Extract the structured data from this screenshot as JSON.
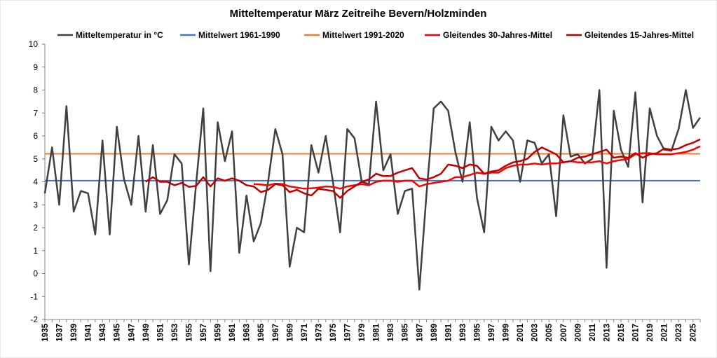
{
  "chart_data": {
    "type": "line",
    "title": "Mitteltemperatur März Zeitreihe Bevern/Holzminden",
    "xlabel": "",
    "ylabel": "",
    "ylim": [
      -2,
      10
    ],
    "yticks": [
      -2,
      -1,
      0,
      1,
      2,
      3,
      4,
      5,
      6,
      7,
      8,
      9,
      10
    ],
    "xlim": [
      1935,
      2026
    ],
    "xtick_labels": [
      "1935",
      "1937",
      "1939",
      "1941",
      "1943",
      "1945",
      "1947",
      "1949",
      "1951",
      "1953",
      "1955",
      "1957",
      "1959",
      "1961",
      "1963",
      "1965",
      "1967",
      "1969",
      "1971",
      "1973",
      "1975",
      "1977",
      "1979",
      "1981",
      "1983",
      "1985",
      "1987",
      "1989",
      "1991",
      "1993",
      "1995",
      "1997",
      "1999",
      "2001",
      "2003",
      "2005",
      "2007",
      "2009",
      "2011",
      "2013",
      "2015",
      "2017",
      "2019",
      "2021",
      "2023",
      "2025"
    ],
    "grid": false,
    "legend_position": "top",
    "series": [
      {
        "name": "Mitteltemperatur in °C",
        "color": "#404040",
        "x": [
          1935,
          1936,
          1937,
          1938,
          1939,
          1940,
          1941,
          1942,
          1943,
          1944,
          1945,
          1946,
          1947,
          1948,
          1949,
          1950,
          1951,
          1952,
          1953,
          1954,
          1955,
          1956,
          1957,
          1958,
          1959,
          1960,
          1961,
          1962,
          1963,
          1964,
          1965,
          1966,
          1967,
          1968,
          1969,
          1970,
          1971,
          1972,
          1973,
          1974,
          1975,
          1976,
          1977,
          1978,
          1979,
          1980,
          1981,
          1982,
          1983,
          1984,
          1985,
          1986,
          1987,
          1988,
          1989,
          1990,
          1991,
          1992,
          1993,
          1994,
          1995,
          1996,
          1997,
          1998,
          1999,
          2000,
          2001,
          2002,
          2003,
          2004,
          2005,
          2006,
          2007,
          2008,
          2009,
          2010,
          2011,
          2012,
          2013,
          2014,
          2015,
          2016,
          2017,
          2018,
          2019,
          2020,
          2021,
          2022,
          2023,
          2024,
          2025,
          2026
        ],
        "values": [
          3.5,
          5.5,
          3.0,
          7.3,
          2.7,
          3.6,
          3.5,
          1.7,
          5.8,
          1.7,
          6.4,
          4.1,
          3.0,
          6.0,
          2.7,
          5.6,
          2.6,
          3.2,
          5.2,
          4.8,
          0.4,
          3.9,
          7.2,
          0.1,
          6.6,
          4.9,
          6.2,
          0.9,
          3.4,
          1.4,
          2.2,
          4.0,
          6.3,
          5.2,
          0.3,
          2.0,
          1.8,
          5.6,
          4.4,
          6.0,
          4.0,
          1.8,
          6.3,
          5.9,
          4.0,
          3.9,
          7.5,
          4.5,
          5.2,
          2.6,
          3.6,
          3.7,
          -0.7,
          3.5,
          7.2,
          7.5,
          7.1,
          5.3,
          4.0,
          6.6,
          3.3,
          1.8,
          6.4,
          5.8,
          6.2,
          5.8,
          4.0,
          5.8,
          5.7,
          4.8,
          5.2,
          2.5,
          6.9,
          5.1,
          5.2,
          4.8,
          5.0,
          8.0,
          0.25,
          7.1,
          5.4,
          4.65,
          7.9,
          3.1,
          7.2,
          6.0,
          5.4,
          5.35,
          6.3,
          8.0,
          6.35,
          6.8
        ]
      },
      {
        "name": "Mittelwert 1961-1990",
        "color": "#4472C4",
        "x": [
          1935,
          2026
        ],
        "values": [
          4.05,
          4.05
        ]
      },
      {
        "name": "Mittelwert 1991-2020",
        "color": "#ED7D31",
        "x": [
          1935,
          2026
        ],
        "values": [
          5.22,
          5.22
        ]
      },
      {
        "name": "Gleitendes 30-Jahres-Mittel",
        "color": "#FF0000",
        "x": [
          1964,
          1965,
          1966,
          1967,
          1968,
          1969,
          1970,
          1971,
          1972,
          1973,
          1974,
          1975,
          1976,
          1977,
          1978,
          1979,
          1980,
          1981,
          1982,
          1983,
          1984,
          1985,
          1986,
          1987,
          1988,
          1989,
          1990,
          1991,
          1992,
          1993,
          1994,
          1995,
          1996,
          1997,
          1998,
          1999,
          2000,
          2001,
          2002,
          2003,
          2004,
          2005,
          2006,
          2007,
          2008,
          2009,
          2010,
          2011,
          2012,
          2013,
          2014,
          2015,
          2016,
          2017,
          2018,
          2019,
          2020,
          2021,
          2022,
          2023,
          2024,
          2025,
          2026
        ],
        "values": [
          3.9,
          3.88,
          3.85,
          3.92,
          3.9,
          3.8,
          3.75,
          3.7,
          3.72,
          3.75,
          3.8,
          3.78,
          3.7,
          3.8,
          3.85,
          3.9,
          3.85,
          4.0,
          4.05,
          4.05,
          4.0,
          4.05,
          4.05,
          3.8,
          3.9,
          3.95,
          4.0,
          4.05,
          4.2,
          4.2,
          4.3,
          4.4,
          4.35,
          4.4,
          4.4,
          4.6,
          4.7,
          4.75,
          4.75,
          4.8,
          4.75,
          4.8,
          4.8,
          4.85,
          4.9,
          4.85,
          4.85,
          4.85,
          4.9,
          4.8,
          4.9,
          4.95,
          5.0,
          5.2,
          5.25,
          5.25,
          5.2,
          5.2,
          5.2,
          5.25,
          5.3,
          5.4,
          5.55
        ]
      },
      {
        "name": "Gleitendes 15-Jahres-Mittel",
        "color": "#C00000",
        "x": [
          1949,
          1950,
          1951,
          1952,
          1953,
          1954,
          1955,
          1956,
          1957,
          1958,
          1959,
          1960,
          1961,
          1962,
          1963,
          1964,
          1965,
          1966,
          1967,
          1968,
          1969,
          1970,
          1971,
          1972,
          1973,
          1974,
          1975,
          1976,
          1977,
          1978,
          1979,
          1980,
          1981,
          1982,
          1983,
          1984,
          1985,
          1986,
          1987,
          1988,
          1989,
          1990,
          1991,
          1992,
          1993,
          1994,
          1995,
          1996,
          1997,
          1998,
          1999,
          2000,
          2001,
          2002,
          2003,
          2004,
          2005,
          2006,
          2007,
          2008,
          2009,
          2010,
          2011,
          2012,
          2013,
          2014,
          2015,
          2016,
          2017,
          2018,
          2019,
          2020,
          2021,
          2022,
          2023,
          2024,
          2025,
          2026
        ],
        "values": [
          4.0,
          4.2,
          4.0,
          4.0,
          3.85,
          3.95,
          3.78,
          3.82,
          4.2,
          3.8,
          4.15,
          4.05,
          4.15,
          4.05,
          3.85,
          3.8,
          3.55,
          3.65,
          3.9,
          3.85,
          3.55,
          3.65,
          3.5,
          3.4,
          3.7,
          3.65,
          3.6,
          3.3,
          3.6,
          3.8,
          4.0,
          4.1,
          4.35,
          4.25,
          4.25,
          4.4,
          4.5,
          4.6,
          4.15,
          4.1,
          4.2,
          4.35,
          4.75,
          4.7,
          4.6,
          4.75,
          4.7,
          4.35,
          4.45,
          4.5,
          4.7,
          4.85,
          4.9,
          5.0,
          5.3,
          5.5,
          5.35,
          5.2,
          4.85,
          4.9,
          5.05,
          5.1,
          5.2,
          5.3,
          5.4,
          5.05,
          5.1,
          5.05,
          5.25,
          5.05,
          5.2,
          5.25,
          5.45,
          5.4,
          5.45,
          5.6,
          5.7,
          5.85
        ]
      }
    ]
  }
}
